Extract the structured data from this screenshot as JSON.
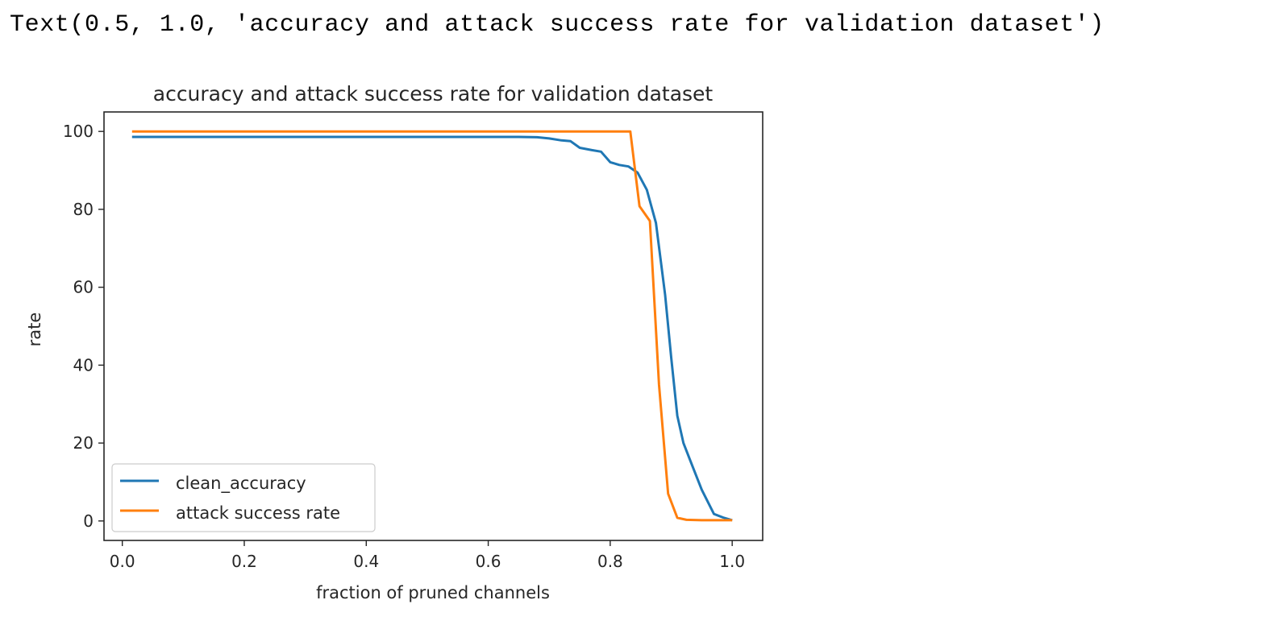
{
  "output_text": "Text(0.5, 1.0, 'accuracy and attack success rate for validation dataset')",
  "chart_data": {
    "type": "line",
    "title": "accuracy and attack success rate for validation dataset",
    "xlabel": "fraction of pruned channels",
    "ylabel": "rate",
    "xlim": [
      -0.03,
      1.05
    ],
    "ylim": [
      -5,
      105
    ],
    "xticks": [
      0.0,
      0.2,
      0.4,
      0.6,
      0.8,
      1.0
    ],
    "xtick_labels": [
      "0.0",
      "0.2",
      "0.4",
      "0.6",
      "0.8",
      "1.0"
    ],
    "yticks": [
      0,
      20,
      40,
      60,
      80,
      100
    ],
    "ytick_labels": [
      "0",
      "20",
      "40",
      "60",
      "80",
      "100"
    ],
    "grid": false,
    "legend_position": "lower-left",
    "series": [
      {
        "name": "clean_accuracy",
        "color": "#1f77b4",
        "x": [
          0.016,
          0.1,
          0.2,
          0.3,
          0.4,
          0.5,
          0.6,
          0.65,
          0.68,
          0.7,
          0.72,
          0.735,
          0.75,
          0.77,
          0.785,
          0.8,
          0.815,
          0.83,
          0.845,
          0.86,
          0.875,
          0.89,
          0.9,
          0.91,
          0.92,
          0.935,
          0.95,
          0.97,
          0.985,
          1.0
        ],
        "values": [
          98.6,
          98.6,
          98.6,
          98.6,
          98.6,
          98.6,
          98.6,
          98.6,
          98.5,
          98.2,
          97.7,
          97.5,
          95.8,
          95.2,
          94.8,
          92.1,
          91.4,
          91.0,
          89.4,
          85.0,
          76.5,
          58.0,
          42.0,
          27.0,
          20.0,
          14.0,
          8.0,
          1.8,
          0.9,
          0.2
        ],
        "coordinates_precision": "estimated"
      },
      {
        "name": "attack success rate",
        "color": "#ff7f0e",
        "x": [
          0.016,
          0.1,
          0.2,
          0.3,
          0.4,
          0.5,
          0.6,
          0.7,
          0.8,
          0.833,
          0.848,
          0.865,
          0.88,
          0.895,
          0.91,
          0.925,
          0.95,
          0.98,
          1.0
        ],
        "values": [
          100,
          100,
          100,
          100,
          100,
          100,
          100,
          100,
          100,
          100,
          80.8,
          77.0,
          35.0,
          7.0,
          0.8,
          0.3,
          0.2,
          0.2,
          0.2
        ],
        "coordinates_precision": "estimated"
      }
    ]
  }
}
